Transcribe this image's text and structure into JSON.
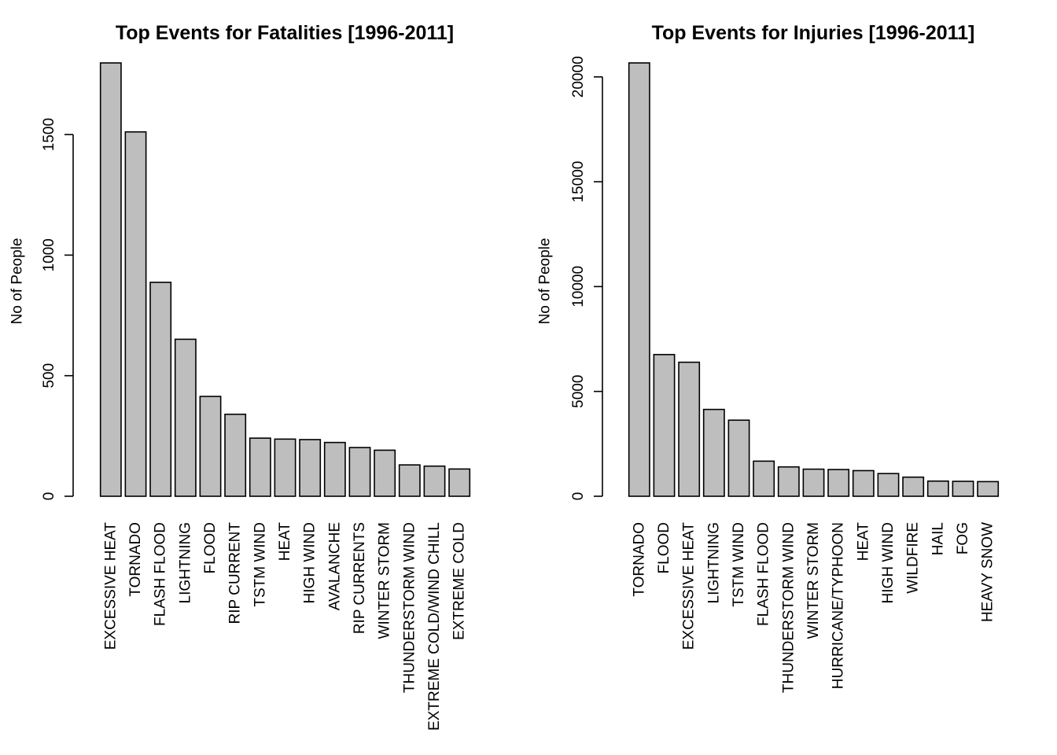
{
  "chart_data": [
    {
      "type": "bar",
      "title": "Top Events for Fatalities [1996-2011]",
      "xlabel": "",
      "ylabel": "No of People",
      "ylim": [
        0,
        1797
      ],
      "yticks": [
        "0",
        "500",
        "1000",
        "1500"
      ],
      "categories": [
        "EXCESSIVE HEAT",
        "TORNADO",
        "FLASH FLOOD",
        "LIGHTNING",
        "FLOOD",
        "RIP CURRENT",
        "TSTM WIND",
        "HEAT",
        "HIGH WIND",
        "AVALANCHE",
        "RIP CURRENTS",
        "WINTER STORM",
        "THUNDERSTORM WIND",
        "EXTREME COLD/WIND CHILL",
        "EXTREME COLD"
      ],
      "values": [
        1797,
        1511,
        887,
        651,
        414,
        340,
        241,
        237,
        235,
        223,
        202,
        191,
        130,
        125,
        113
      ],
      "bar_color": "#bebebe",
      "grid": false,
      "legend": "none"
    },
    {
      "type": "bar",
      "title": "Top Events for Injuries [1996-2011]",
      "xlabel": "",
      "ylabel": "No of People",
      "ylim": [
        0,
        20667
      ],
      "yticks": [
        "0",
        "5000",
        "10000",
        "15000",
        "20000"
      ],
      "categories": [
        "TORNADO",
        "FLOOD",
        "EXCESSIVE HEAT",
        "LIGHTNING",
        "TSTM WIND",
        "FLASH FLOOD",
        "THUNDERSTORM WIND",
        "WINTER STORM",
        "HURRICANE/TYPHOON",
        "HEAT",
        "HIGH WIND",
        "WILDFIRE",
        "HAIL",
        "FOG",
        "HEAVY SNOW"
      ],
      "values": [
        20667,
        6758,
        6391,
        4141,
        3629,
        1674,
        1400,
        1292,
        1275,
        1222,
        1083,
        911,
        723,
        712,
        698
      ],
      "bar_color": "#bebebe",
      "grid": false,
      "legend": "none"
    }
  ]
}
